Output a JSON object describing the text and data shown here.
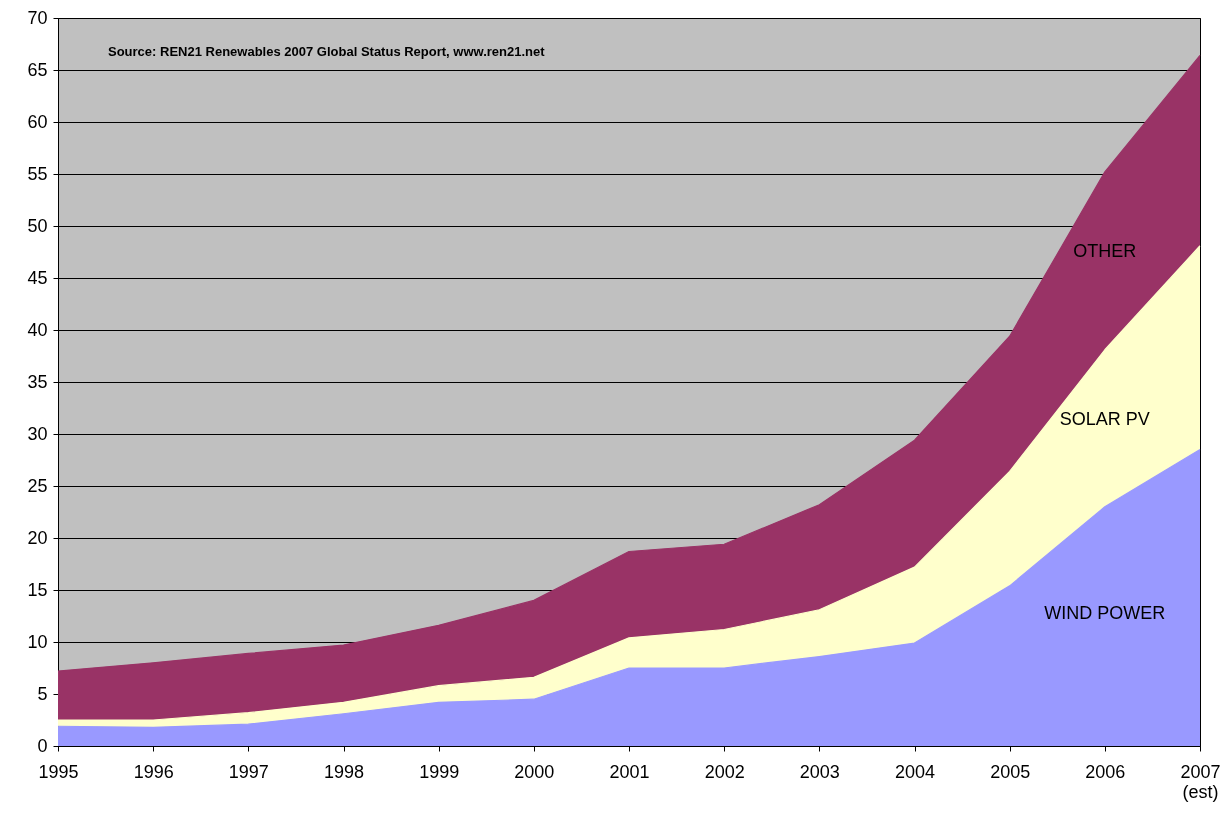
{
  "chart_data": {
    "type": "area",
    "stacked": true,
    "categories": [
      "1995",
      "1996",
      "1997",
      "1998",
      "1999",
      "2000",
      "2001",
      "2002",
      "2003",
      "2004",
      "2005",
      "2006",
      "2007\n(est)"
    ],
    "series": [
      {
        "name": "WIND POWER",
        "color": "#9999ff",
        "values": [
          1.9,
          1.8,
          2.1,
          3.1,
          4.2,
          4.5,
          7.5,
          7.5,
          8.6,
          9.9,
          15.4,
          23.0,
          28.5
        ]
      },
      {
        "name": "SOLAR PV",
        "color": "#ffffcc",
        "values": [
          0.6,
          0.7,
          1.1,
          1.1,
          1.6,
          2.1,
          2.9,
          3.7,
          4.5,
          7.3,
          11.0,
          15.1,
          19.6
        ]
      },
      {
        "name": "OTHER",
        "color": "#993366",
        "values": [
          4.7,
          5.5,
          5.7,
          5.5,
          5.8,
          7.4,
          8.3,
          8.2,
          10.1,
          12.2,
          13.0,
          17.1,
          18.3
        ]
      }
    ],
    "ylim": [
      0,
      70
    ],
    "yticks": [
      0,
      5,
      10,
      15,
      20,
      25,
      30,
      35,
      40,
      45,
      50,
      55,
      60,
      65,
      70
    ],
    "grid": "y",
    "annotations": [
      "Source: REN21 Renewables 2007 Global Status Report, www.ren21.net"
    ]
  }
}
